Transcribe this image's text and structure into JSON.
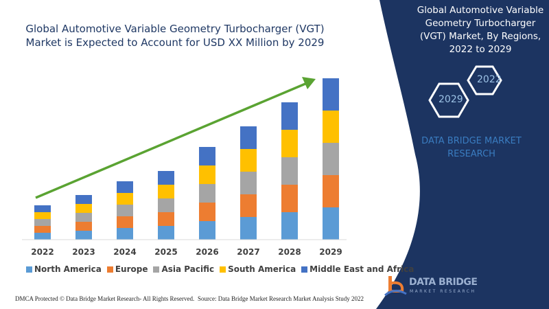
{
  "title": "Global Automotive Variable Geometry Turbocharger (VGT) Market is Expected to Account for USD XX Million by 2029",
  "side_panel": {
    "title": "Global Automotive Variable Geometry Turbocharger (VGT) Market, By Regions, 2022 to 2029",
    "hex_start": "2022",
    "hex_end": "2029",
    "brand": "DATA BRIDGE MARKET RESEARCH",
    "logo_text": "DATA BRIDGE",
    "logo_sub": "MARKET RESEARCH"
  },
  "footer": {
    "left": "DMCA Protected © Data Bridge Market Research- All Rights Reserved.",
    "right": "Source: Data Bridge Market Research Market Analysis Study 2022"
  },
  "colors": {
    "panel": "#1c3461",
    "arrow": "#5aa332"
  },
  "chart_data": {
    "type": "bar",
    "stacked": true,
    "grid": false,
    "legend_position": "bottom",
    "trend_arrow": true,
    "categories": [
      "2022",
      "2023",
      "2024",
      "2025",
      "2026",
      "2027",
      "2028",
      "2029"
    ],
    "series": [
      {
        "name": "North America",
        "color": "#5b9bd5",
        "values": [
          10,
          13,
          17,
          20,
          27,
          33,
          40,
          47
        ]
      },
      {
        "name": "Europe",
        "color": "#ed7d31",
        "values": [
          10,
          13,
          17,
          20,
          27,
          33,
          40,
          47
        ]
      },
      {
        "name": "Asia Pacific",
        "color": "#a5a5a5",
        "values": [
          10,
          13,
          17,
          20,
          27,
          33,
          40,
          47
        ]
      },
      {
        "name": "South America",
        "color": "#ffc000",
        "values": [
          10,
          13,
          17,
          20,
          27,
          33,
          40,
          47
        ]
      },
      {
        "name": "Middle East and Africa",
        "color": "#4472c4",
        "values": [
          10,
          13,
          17,
          20,
          27,
          33,
          40,
          47
        ]
      }
    ]
  }
}
